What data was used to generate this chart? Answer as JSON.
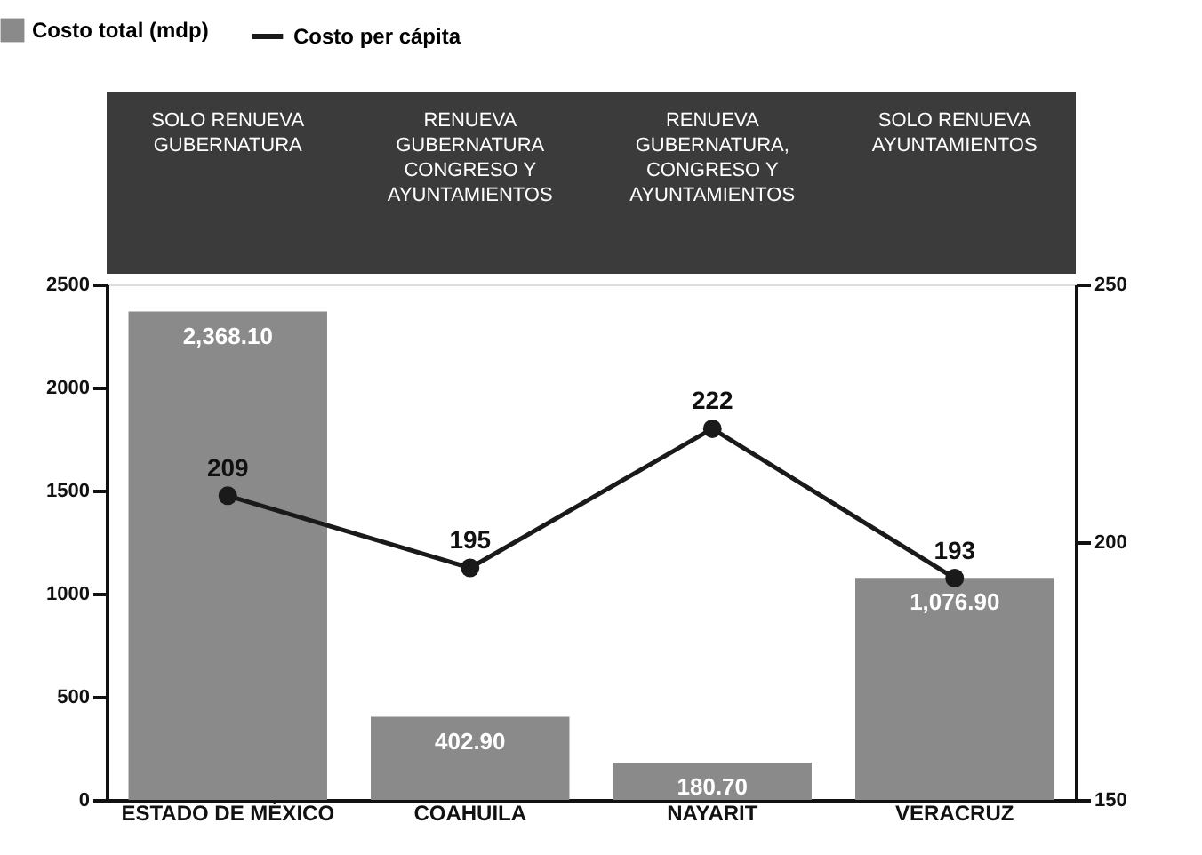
{
  "chart_data": {
    "type": "bar",
    "categories": [
      "ESTADO DE MÉXICO",
      "COAHUILA",
      "NAYARIT",
      "VERACRUZ"
    ],
    "series": [
      {
        "name": "Costo total (mdp)",
        "color": "#8a8a8a",
        "values": [
          2368.1,
          402.9,
          180.7,
          1076.9
        ],
        "value_labels": [
          "2,368.10",
          "402.90",
          "180.70",
          "1,076.90"
        ]
      },
      {
        "name": "Costo per cápita",
        "type": "line",
        "axis": "y2",
        "color": "#1a1a1a",
        "values": [
          209,
          195,
          222,
          193
        ],
        "value_labels": [
          "209",
          "195",
          "222",
          "193"
        ]
      }
    ],
    "ylim": [
      0,
      2500
    ],
    "yticks": [
      0,
      500,
      1000,
      1500,
      2000,
      2500
    ],
    "y2lim": [
      150,
      250
    ],
    "y2ticks": [
      150,
      200,
      250
    ],
    "annotations": [
      "SOLO RENUEVA\nGUBERNATURA",
      "RENUEVA\nGUBERNATURA\nCONGRESO Y\nAYUNTAMIENTOS",
      "RENUEVA\nGUBERNATURA,\nCONGRESO Y\nAYUNTAMIENTOS",
      "SOLO RENUEVA\nAYUNTAMIENTOS"
    ],
    "marker": "circle",
    "legend": "top left",
    "grid": false
  }
}
